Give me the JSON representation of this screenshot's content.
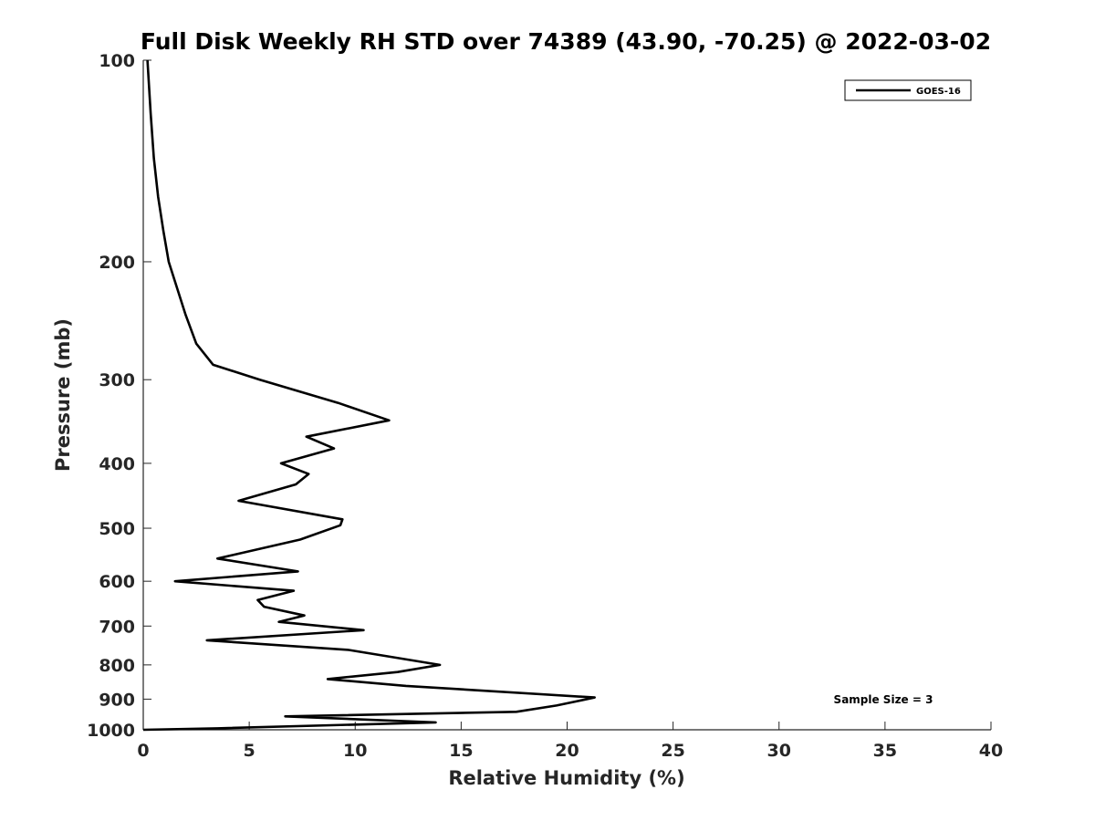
{
  "chart_data": {
    "type": "line",
    "title": "Full Disk Weekly RH STD over 74389 (43.90, -70.25) @ 2022-03-02",
    "xlabel": "Relative Humidity (%)",
    "ylabel": "Pressure (mb)",
    "xlim": [
      0,
      40
    ],
    "ylim": [
      100,
      1000
    ],
    "y_scale": "log",
    "y_reversed": true,
    "grid": false,
    "legend_position": "top-right",
    "x_ticks": [
      0,
      5,
      10,
      15,
      20,
      25,
      30,
      35,
      40
    ],
    "x_tick_labels": [
      "0",
      "5",
      "10",
      "15",
      "20",
      "25",
      "30",
      "35",
      "40"
    ],
    "y_ticks": [
      100,
      200,
      300,
      400,
      500,
      600,
      700,
      800,
      900,
      1000
    ],
    "y_tick_labels": [
      "100",
      "200",
      "300",
      "400",
      "500",
      "600",
      "700",
      "800",
      "900",
      "1000"
    ],
    "annotation": "Sample Size = 3",
    "series": [
      {
        "name": "GOES-16",
        "color": "#000000",
        "points": [
          [
            0.2,
            100
          ],
          [
            0.35,
            120
          ],
          [
            0.5,
            140
          ],
          [
            0.7,
            160
          ],
          [
            0.95,
            180
          ],
          [
            1.2,
            200
          ],
          [
            2.0,
            240
          ],
          [
            2.5,
            265
          ],
          [
            3.3,
            285
          ],
          [
            5.5,
            300
          ],
          [
            9.2,
            325
          ],
          [
            11.6,
            345
          ],
          [
            7.7,
            365
          ],
          [
            9.0,
            380
          ],
          [
            6.5,
            400
          ],
          [
            7.8,
            415
          ],
          [
            7.2,
            430
          ],
          [
            4.5,
            455
          ],
          [
            9.4,
            485
          ],
          [
            9.3,
            495
          ],
          [
            7.4,
            520
          ],
          [
            3.5,
            555
          ],
          [
            7.3,
            580
          ],
          [
            1.5,
            600
          ],
          [
            7.1,
            620
          ],
          [
            5.4,
            640
          ],
          [
            5.7,
            655
          ],
          [
            7.6,
            675
          ],
          [
            6.4,
            690
          ],
          [
            10.4,
            710
          ],
          [
            3.0,
            735
          ],
          [
            9.7,
            760
          ],
          [
            14.0,
            800
          ],
          [
            12.0,
            820
          ],
          [
            8.7,
            840
          ],
          [
            12.4,
            860
          ],
          [
            21.3,
            895
          ],
          [
            19.5,
            920
          ],
          [
            17.6,
            940
          ],
          [
            6.7,
            955
          ],
          [
            13.8,
            975
          ],
          [
            3.5,
            995
          ],
          [
            0.0,
            1000
          ]
        ]
      }
    ]
  }
}
